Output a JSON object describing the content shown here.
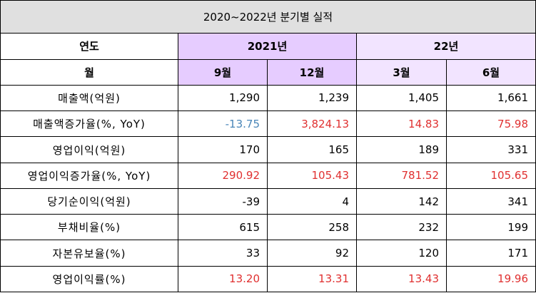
{
  "title": "2020~2022년 분기별 실적",
  "header": {
    "year_label": "연도",
    "year_2021": "2021년",
    "year_22": "22년",
    "month_label": "월",
    "months": [
      "9월",
      "12월",
      "3월",
      "6월"
    ]
  },
  "rows": [
    {
      "label": "매출액(억원)",
      "values": [
        "1,290",
        "1,239",
        "1,405",
        "1,661"
      ],
      "styles": [
        "",
        "",
        "",
        ""
      ]
    },
    {
      "label": "매출액증가율(%, YoY)",
      "values": [
        "-13.75",
        "3,824.13",
        "14.83",
        "75.98"
      ],
      "styles": [
        "neg",
        "pos",
        "pos",
        "pos"
      ]
    },
    {
      "label": "영업이익(억원)",
      "values": [
        "170",
        "165",
        "189",
        "331"
      ],
      "styles": [
        "",
        "",
        "",
        ""
      ]
    },
    {
      "label": "영업이익증가율(%, YoY)",
      "values": [
        "290.92",
        "105.43",
        "781.52",
        "105.65"
      ],
      "styles": [
        "pos",
        "pos",
        "pos",
        "pos"
      ]
    },
    {
      "label": "당기순이익(억원)",
      "values": [
        "-39",
        "4",
        "142",
        "341"
      ],
      "styles": [
        "",
        "",
        "",
        ""
      ]
    },
    {
      "label": "부채비율(%)",
      "values": [
        "615",
        "258",
        "232",
        "199"
      ],
      "styles": [
        "",
        "",
        "",
        ""
      ]
    },
    {
      "label": "자본유보율(%)",
      "values": [
        "33",
        "92",
        "120",
        "171"
      ],
      "styles": [
        "",
        "",
        "",
        ""
      ]
    },
    {
      "label": "영업이익률(%)",
      "values": [
        "13.20",
        "13.31",
        "13.43",
        "19.96"
      ],
      "styles": [
        "pos",
        "pos",
        "pos",
        "pos"
      ]
    }
  ],
  "colors": {
    "negative": "#4a86b8",
    "positive": "#e03030",
    "header_2021": "#e6ccff",
    "header_22": "#f2e4ff",
    "title_bg": "#e0e0e0"
  }
}
